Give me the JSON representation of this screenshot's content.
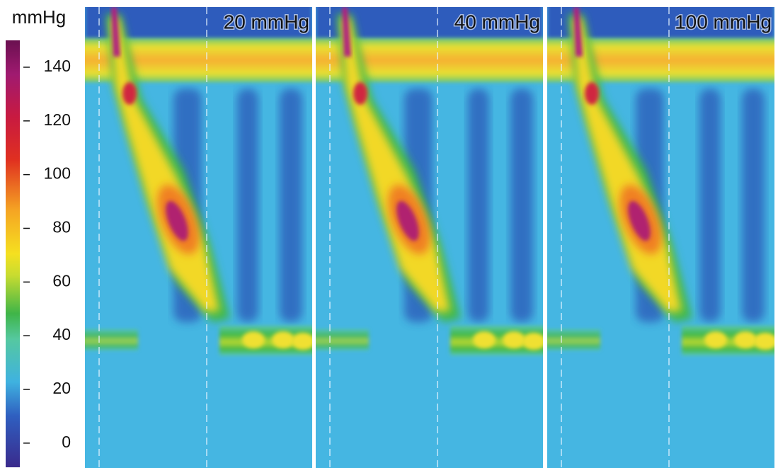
{
  "chart_data": {
    "type": "heatmap",
    "colorbar": {
      "label": "mmHg",
      "lim": [
        -9,
        150
      ],
      "ticks": [
        0,
        20,
        40,
        60,
        80,
        100,
        120,
        140
      ]
    },
    "panels": [
      {
        "title": "20 mmHg"
      },
      {
        "title": "40 mmHg"
      },
      {
        "title": "100 mmHg"
      }
    ]
  }
}
